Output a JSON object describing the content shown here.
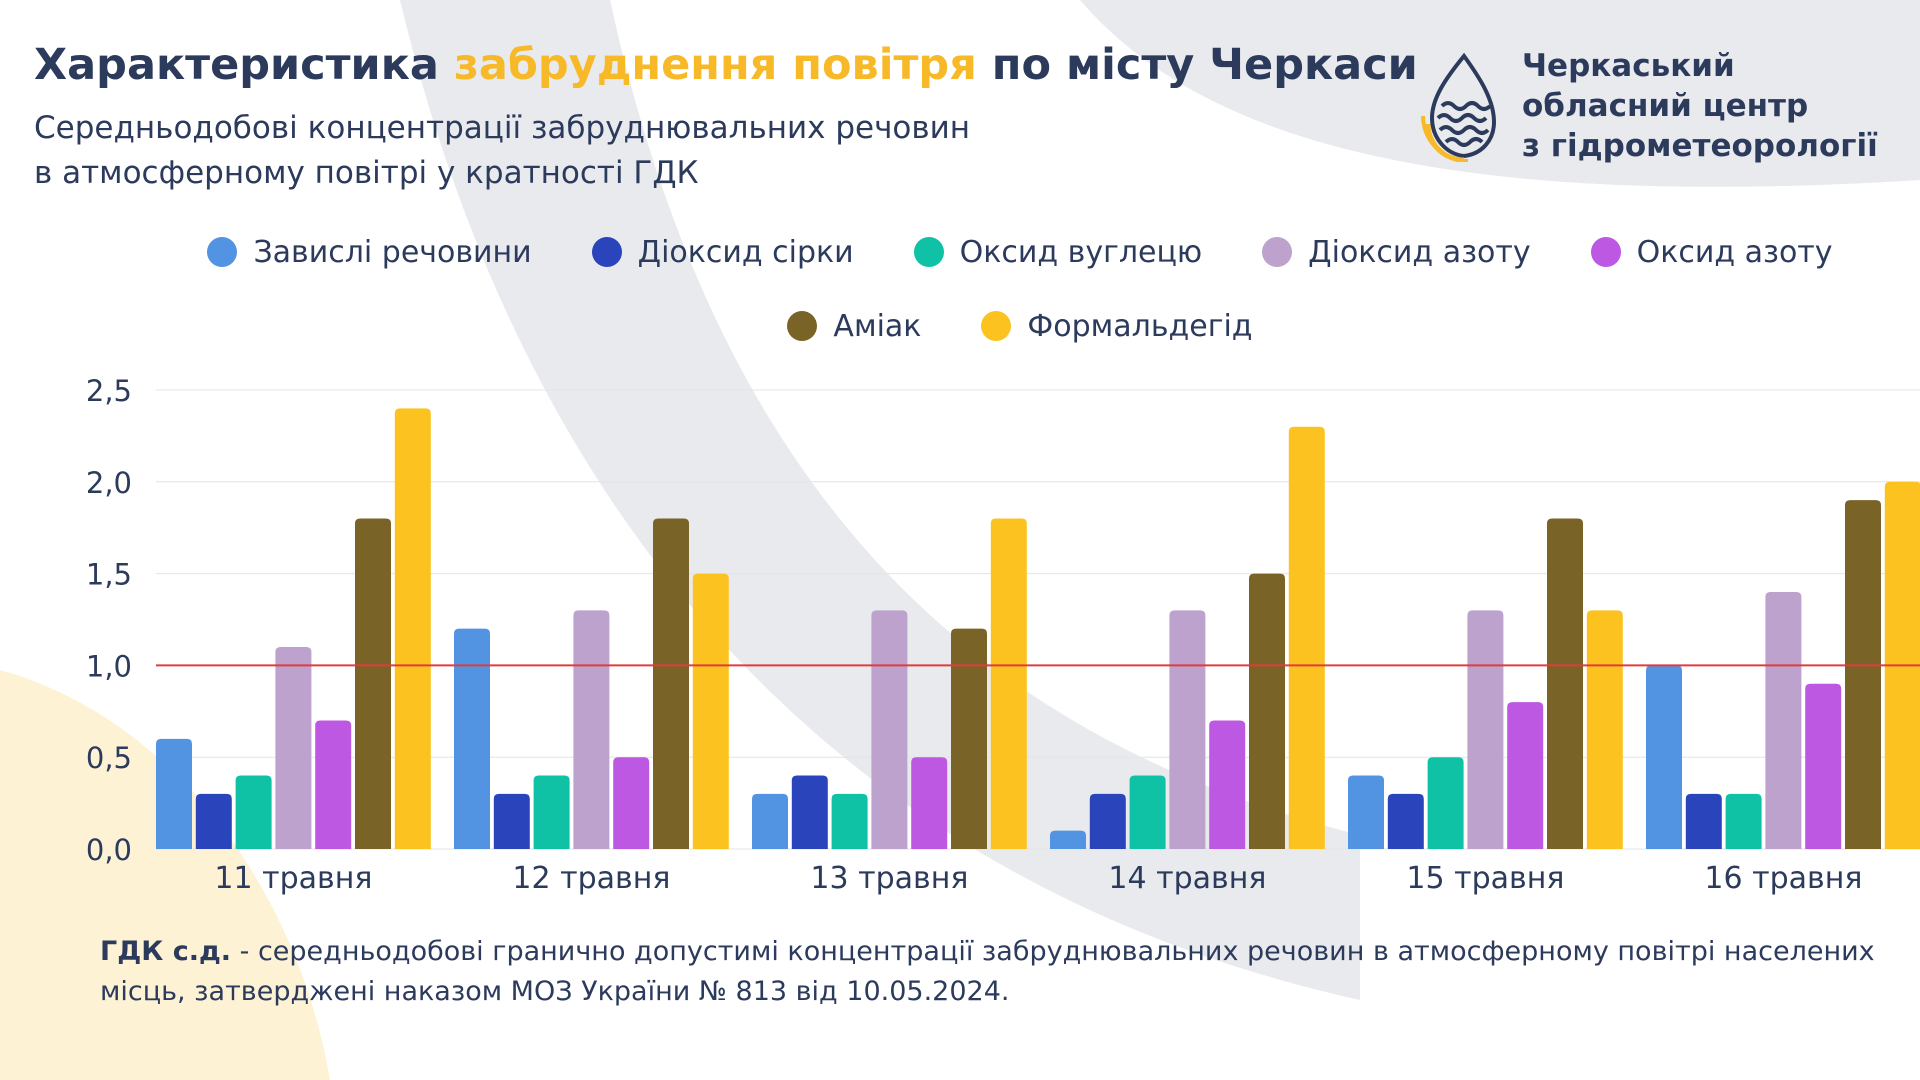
{
  "header": {
    "title_part1": "Характеристика ",
    "title_accent": "забруднення повітря",
    "title_part2": " по місту Черкаси",
    "subtitle_line1": "Середньодобові концентрації забруднювальних речовин",
    "subtitle_line2": "в атмосферному повітрі у кратності ГДК"
  },
  "organization": {
    "line1": "Черкаський",
    "line2": "обласний центр",
    "line3": "з гідрометеорології",
    "logo_icon": "water-drop-sun-logo"
  },
  "colors": {
    "title_accent": "#f7b928",
    "text": "#2c3a5c",
    "reference_line": "#e03c3c",
    "background_arc_gray": "#e9eaee",
    "background_arc_yellow": "#fdf3d4"
  },
  "chart_data": {
    "type": "bar",
    "title": "",
    "xlabel": "",
    "ylabel": "",
    "categories": [
      "11 травня",
      "12 травня",
      "13 травня",
      "14 травня",
      "15 травня",
      "16 травня"
    ],
    "ylim": [
      0,
      2.5
    ],
    "yticks": [
      "0,0",
      "0,5",
      "1,0",
      "1,5",
      "2,0",
      "2,5"
    ],
    "ytick_values": [
      0,
      0.5,
      1.0,
      1.5,
      2.0,
      2.5
    ],
    "grid": true,
    "legend_position": "top-center",
    "reference_line": {
      "value": 1.0,
      "color": "#e03c3c"
    },
    "series": [
      {
        "name": "Завислі речовини",
        "color": "#5294e2",
        "values": [
          0.6,
          1.2,
          0.3,
          0.1,
          0.4,
          1.0
        ]
      },
      {
        "name": "Діоксид сірки",
        "color": "#2a44bc",
        "values": [
          0.3,
          0.3,
          0.4,
          0.3,
          0.3,
          0.3
        ]
      },
      {
        "name": "Оксид вуглецю",
        "color": "#0fc2a6",
        "values": [
          0.4,
          0.4,
          0.3,
          0.4,
          0.5,
          0.3
        ]
      },
      {
        "name": "Діоксид азоту",
        "color": "#bca2cc",
        "values": [
          1.1,
          1.3,
          1.3,
          1.3,
          1.3,
          1.4
        ]
      },
      {
        "name": "Оксид азоту",
        "color": "#bc58e2",
        "values": [
          0.7,
          0.5,
          0.5,
          0.7,
          0.8,
          0.9
        ]
      },
      {
        "name": "Аміак",
        "color": "#7a6326",
        "values": [
          1.8,
          1.8,
          1.2,
          1.5,
          1.8,
          1.9
        ]
      },
      {
        "name": "Формальдегід",
        "color": "#fcc320",
        "values": [
          2.4,
          1.5,
          1.8,
          2.3,
          1.3,
          2.0
        ]
      }
    ]
  },
  "footnote": {
    "term": "ГДК с.д.",
    "text": " - середньодобові гранично допустимі концентрації забруднювальних речовин в атмосферному повітрі населених місць, затверджені наказом МОЗ України № 813 від 10.05.2024."
  }
}
